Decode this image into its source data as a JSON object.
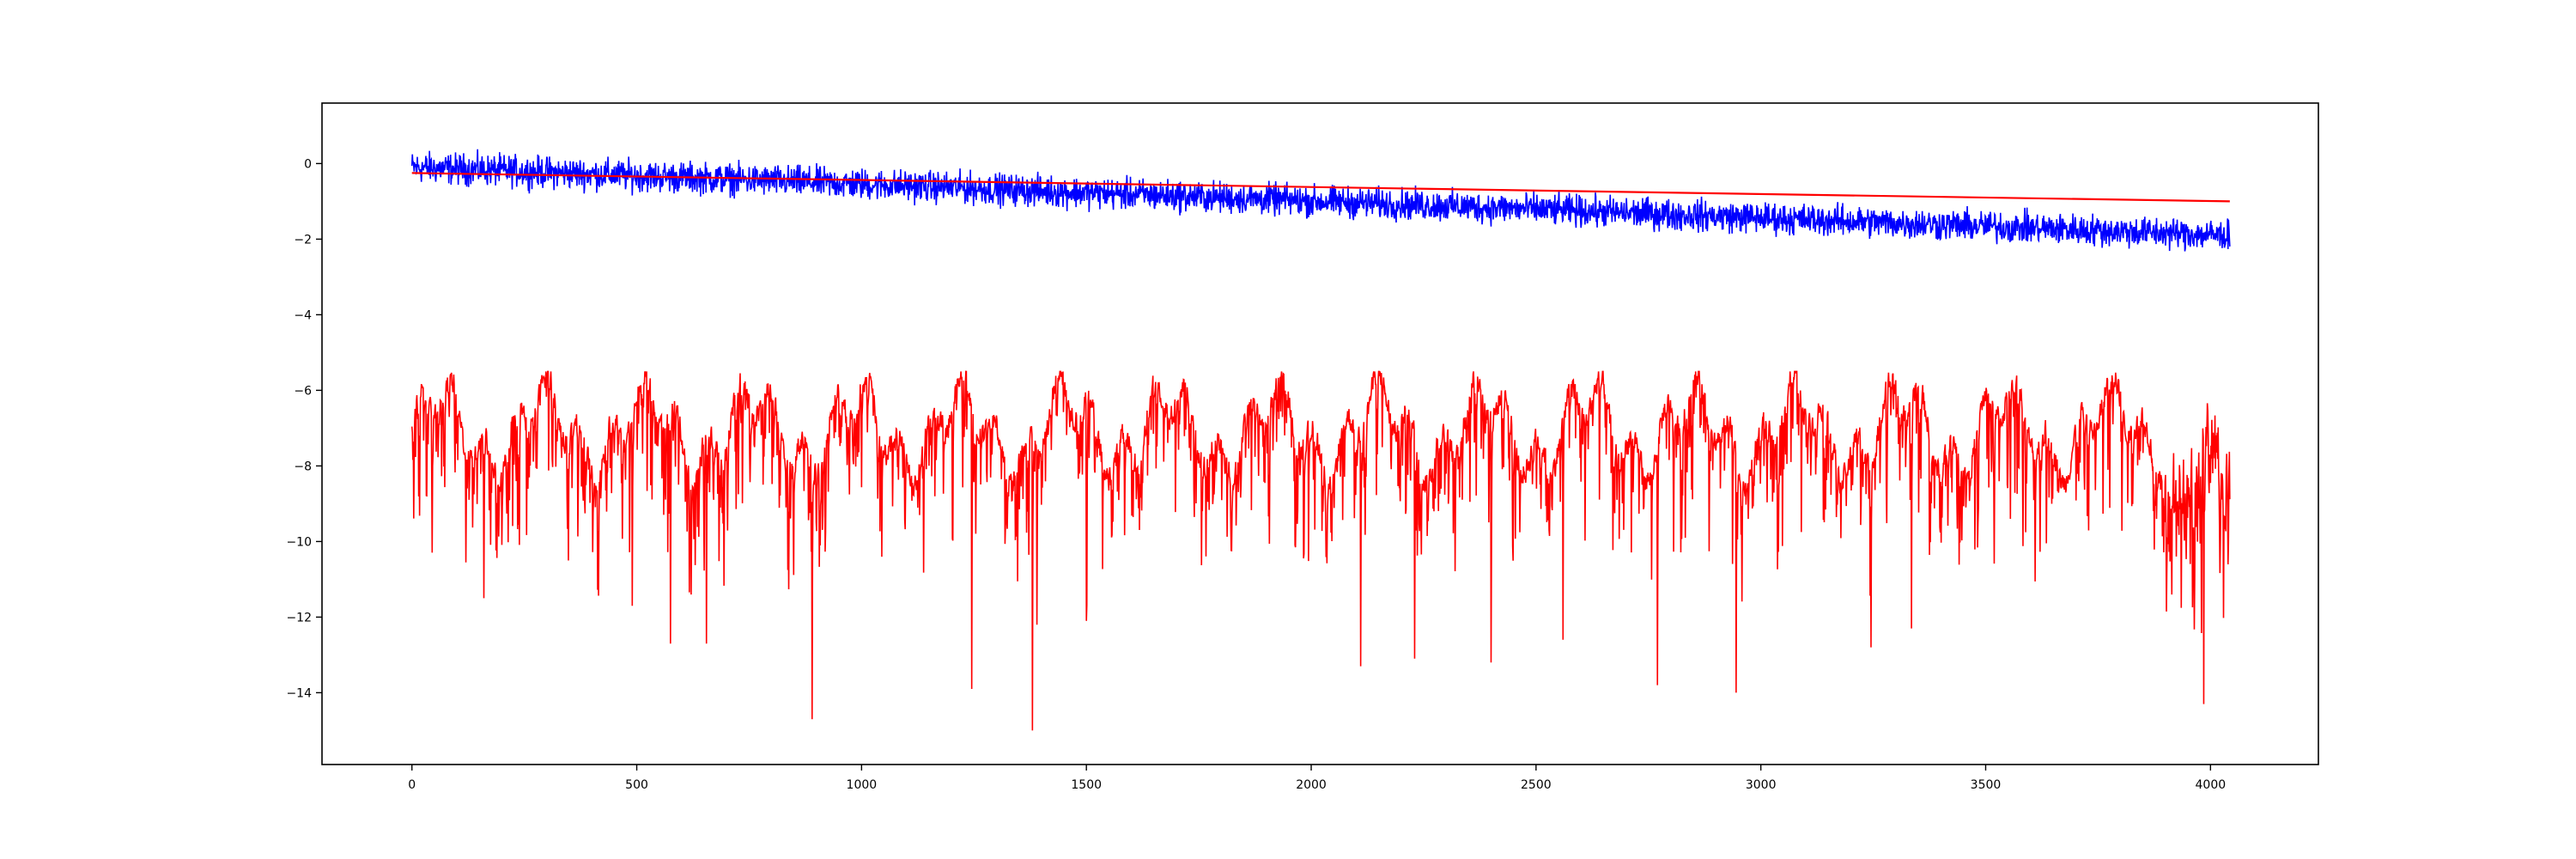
{
  "chart_data": {
    "type": "line",
    "title": "",
    "xlabel": "",
    "ylabel": "",
    "xlim": [
      -200,
      4240
    ],
    "ylim": [
      -15.9,
      1.6
    ],
    "grid": false,
    "legend": "none",
    "x_ticks": [
      "0",
      "500",
      "1000",
      "1500",
      "2000",
      "2500",
      "3000",
      "3500",
      "4000"
    ],
    "y_ticks": [
      "0",
      "−2",
      "−4",
      "−6",
      "−8",
      "−10",
      "−12",
      "−14"
    ],
    "series": [
      {
        "color": "#0000ff",
        "kind": "noisy-line",
        "x_range": [
          0,
          4043
        ],
        "trend_start": -0.1,
        "trend_end": -1.9,
        "noise_amplitude": 0.45,
        "min": -2.8,
        "max": 0.85
      },
      {
        "color": "#ff0000",
        "kind": "straight-line",
        "x": [
          0,
          4043
        ],
        "y": [
          -0.25,
          -1.0
        ]
      },
      {
        "color": "#ff0000",
        "kind": "noisy-line",
        "x_range": [
          0,
          4043
        ],
        "baseline": -6.2,
        "min": -15.0,
        "max": -5.5,
        "deep_dips": [
          {
            "x": 160,
            "y": -11.5
          },
          {
            "x": 490,
            "y": -11.7
          },
          {
            "x": 575,
            "y": -12.7
          },
          {
            "x": 655,
            "y": -12.7
          },
          {
            "x": 890,
            "y": -14.7
          },
          {
            "x": 1245,
            "y": -13.9
          },
          {
            "x": 1380,
            "y": -15.0
          },
          {
            "x": 1390,
            "y": -12.2
          },
          {
            "x": 1500,
            "y": -12.1
          },
          {
            "x": 2110,
            "y": -13.3
          },
          {
            "x": 2230,
            "y": -13.1
          },
          {
            "x": 2400,
            "y": -13.2
          },
          {
            "x": 2560,
            "y": -12.6
          },
          {
            "x": 2770,
            "y": -13.8
          },
          {
            "x": 2945,
            "y": -14.0
          },
          {
            "x": 3245,
            "y": -12.8
          },
          {
            "x": 3335,
            "y": -12.3
          },
          {
            "x": 3985,
            "y": -14.3
          }
        ]
      }
    ]
  }
}
